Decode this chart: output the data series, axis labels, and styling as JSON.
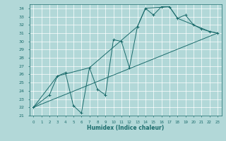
{
  "xlabel": "Humidex (Indice chaleur)",
  "ylabel": "",
  "bg_color": "#b2d8d8",
  "grid_color": "#c8e8e0",
  "line_color": "#1a6b6b",
  "xlim": [
    -0.5,
    23.5
  ],
  "ylim": [
    21,
    34.5
  ],
  "xticks": [
    0,
    1,
    2,
    3,
    4,
    5,
    6,
    7,
    8,
    9,
    10,
    11,
    12,
    13,
    14,
    15,
    16,
    17,
    18,
    19,
    20,
    21,
    22,
    23
  ],
  "yticks": [
    21,
    22,
    23,
    24,
    25,
    26,
    27,
    28,
    29,
    30,
    31,
    32,
    33,
    34
  ],
  "line1_x": [
    0,
    2,
    3,
    4,
    5,
    6,
    7,
    8,
    9,
    10,
    11,
    12,
    13,
    14,
    15,
    16,
    17,
    18,
    19,
    20,
    21,
    22,
    23
  ],
  "line1_y": [
    22.0,
    23.5,
    25.8,
    26.2,
    22.2,
    21.3,
    26.8,
    24.2,
    23.5,
    30.2,
    30.0,
    26.8,
    31.8,
    34.0,
    33.2,
    34.2,
    34.2,
    32.8,
    33.2,
    32.0,
    31.5,
    31.2,
    31.0
  ],
  "line2_x": [
    0,
    3,
    7,
    13,
    14,
    17,
    18,
    22,
    23
  ],
  "line2_y": [
    22.0,
    25.8,
    26.8,
    31.8,
    34.0,
    34.2,
    32.8,
    31.2,
    31.0
  ],
  "line3_x": [
    0,
    23
  ],
  "line3_y": [
    22.0,
    31.0
  ]
}
